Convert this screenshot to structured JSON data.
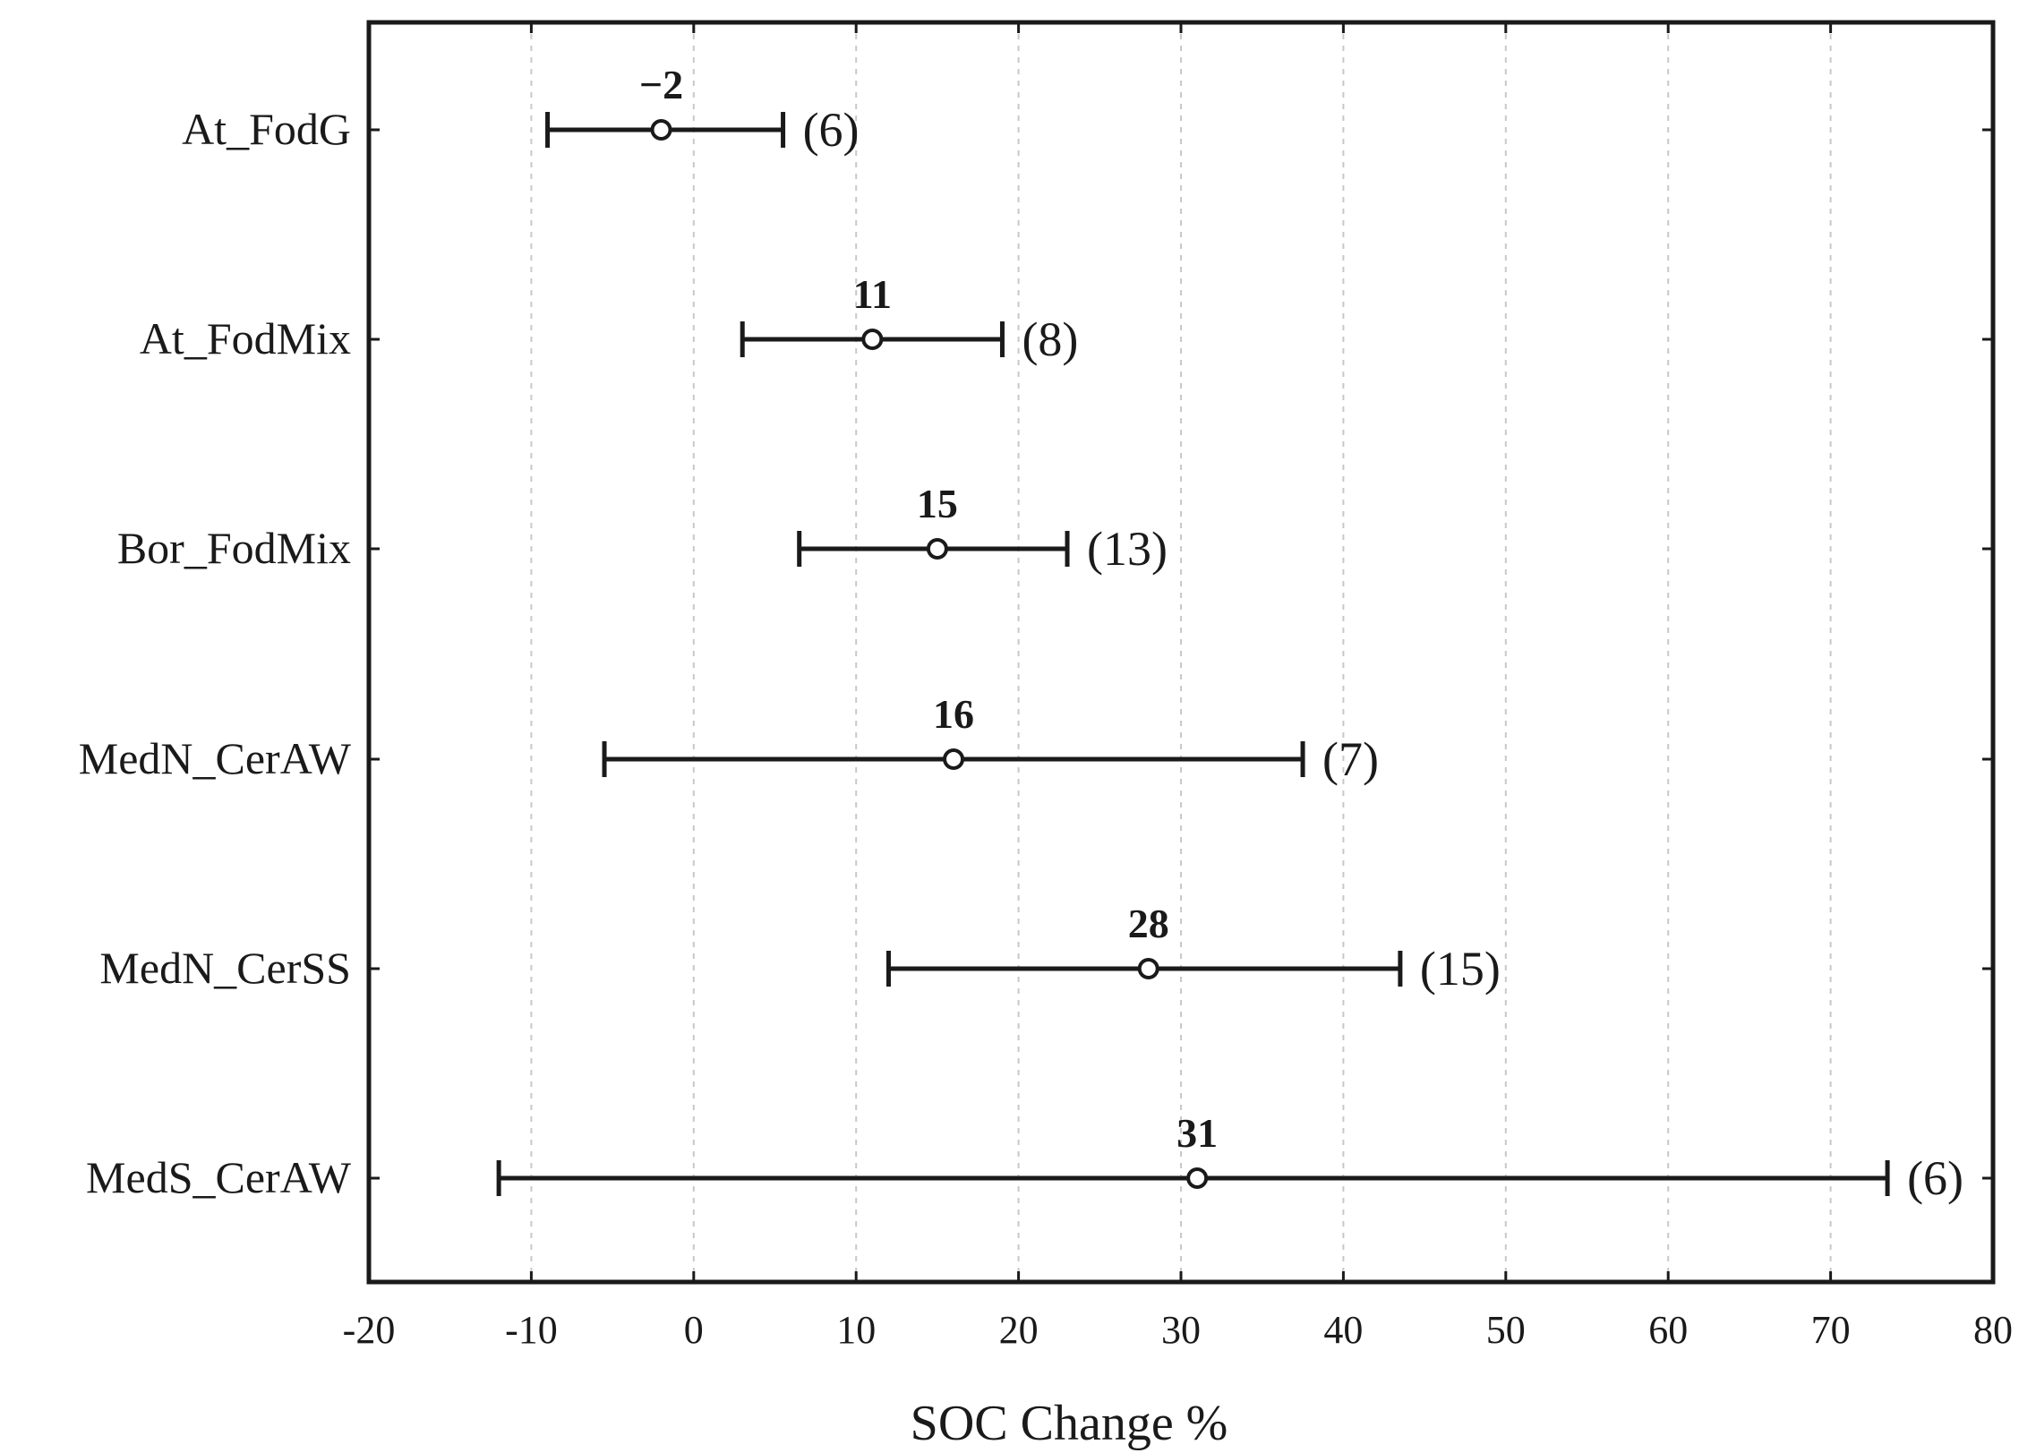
{
  "chart_data": {
    "type": "errorbar",
    "orientation": "horizontal",
    "title": "",
    "xlabel": "SOC Change %",
    "ylabel": "",
    "xlim": [
      -20,
      80
    ],
    "xticks": [
      -20,
      -10,
      0,
      10,
      20,
      30,
      40,
      50,
      60,
      70,
      80
    ],
    "grid": "vertical dotted",
    "categories": [
      "At_FodG",
      "At_FodMix",
      "Bor_FodMix",
      "MedN_CerAW",
      "MedN_CerSS",
      "MedS_CerAW"
    ],
    "mean": [
      -2,
      11,
      15,
      16,
      28,
      31
    ],
    "mean_labels": [
      "−2",
      "11",
      "15",
      "16",
      "28",
      "31"
    ],
    "lower": [
      -9,
      3,
      6.5,
      -5.5,
      12,
      -12
    ],
    "upper": [
      5.5,
      19,
      23,
      37.5,
      43.5,
      73.5
    ],
    "n": [
      "(6)",
      "(8)",
      "(13)",
      "(7)",
      "(15)",
      "(6)"
    ]
  },
  "colors": {
    "line": "#1a1a1a",
    "marker_fill": "#ffffff",
    "grid": "#c8c8c8",
    "background": "#ffffff"
  }
}
